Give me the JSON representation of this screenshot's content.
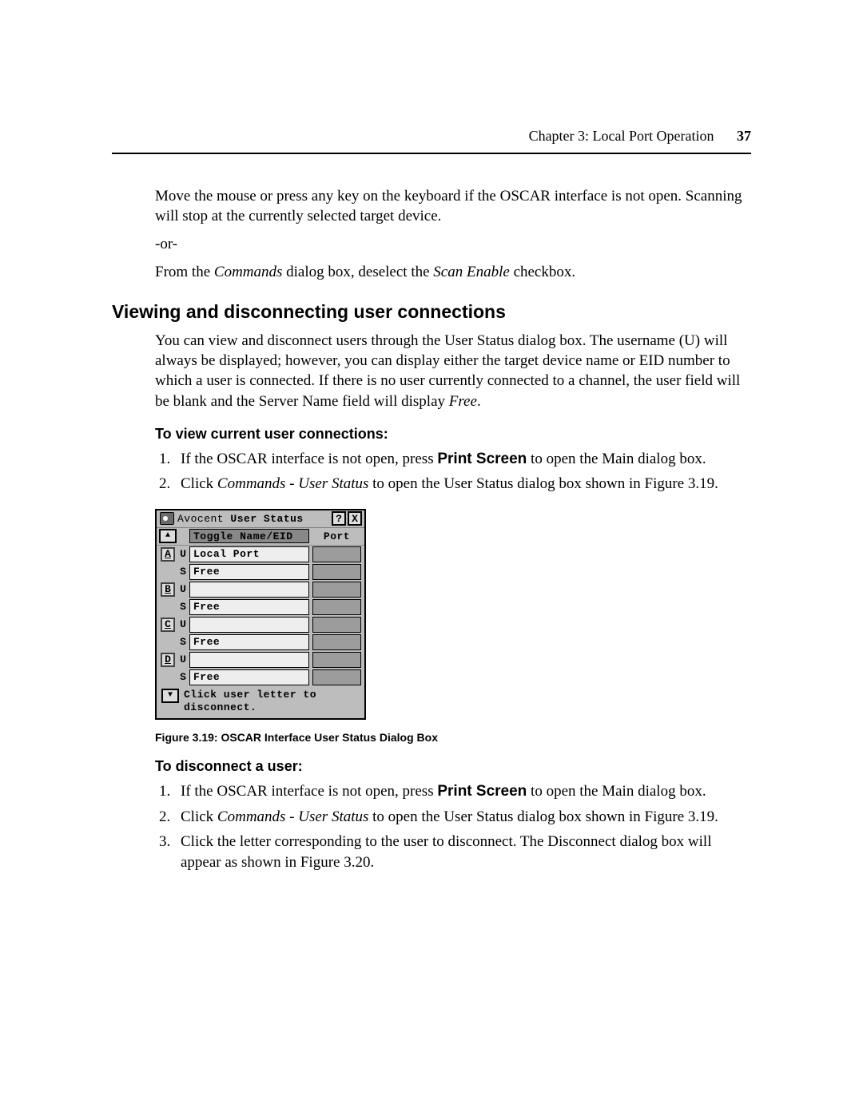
{
  "header": {
    "chapter_label": "Chapter 3: Local Port Operation",
    "page_number": "37"
  },
  "intro": {
    "p1_a": "Move the mouse or press any key on the keyboard if the OSCAR interface is not open. Scanning will stop at the currently selected target device.",
    "or": "-or-",
    "p2_a": "From the ",
    "p2_b": "Commands",
    "p2_c": " dialog box, deselect the ",
    "p2_d": "Scan Enable",
    "p2_e": " checkbox."
  },
  "h2": "Viewing and disconnecting user connections",
  "section_p_a": "You can view and disconnect users through the User Status dialog box. The username (U) will always be displayed; however, you can display either the target device name or EID number to which a user is connected. If there is no user currently connected to a channel, the user field will be blank and the Server Name field will display ",
  "section_p_b": "Free",
  "section_p_c": ".",
  "h3_view": "To view current user connections:",
  "view_steps": {
    "s1_a": "If the OSCAR interface is not open, press ",
    "s1_b": "Print Screen",
    "s1_c": " to open the Main dialog box.",
    "s2_a": "Click ",
    "s2_b": "Commands - User Status",
    "s2_c": " to open the User Status dialog box shown in Figure 3.19."
  },
  "dialog": {
    "brand": "Avocent",
    "title": "User Status",
    "help": "?",
    "close": "X",
    "scroll_up": "▲",
    "scroll_down": "▼",
    "toggle_label": "Toggle Name/EID",
    "port_label": "Port",
    "rows": [
      {
        "letter": "A",
        "u_label": "U",
        "u_value": "Local Port",
        "s_label": "S",
        "s_value": "Free"
      },
      {
        "letter": "B",
        "u_label": "U",
        "u_value": "",
        "s_label": "S",
        "s_value": "Free"
      },
      {
        "letter": "C",
        "u_label": "U",
        "u_value": "",
        "s_label": "S",
        "s_value": "Free"
      },
      {
        "letter": "D",
        "u_label": "U",
        "u_value": "",
        "s_label": "S",
        "s_value": "Free"
      }
    ],
    "footer_msg": "Click user letter to disconnect."
  },
  "caption": "Figure 3.19: OSCAR Interface User Status Dialog Box",
  "h3_disc": "To disconnect a user:",
  "disc_steps": {
    "s1_a": "If the OSCAR interface is not open, press ",
    "s1_b": "Print Screen",
    "s1_c": " to open the Main dialog box.",
    "s2_a": "Click ",
    "s2_b": "Commands - User Status",
    "s2_c": " to open the User Status dialog box shown in Figure 3.19.",
    "s3": "Click the letter corresponding to the user to disconnect. The Disconnect dialog box will appear as shown in Figure 3.20."
  }
}
